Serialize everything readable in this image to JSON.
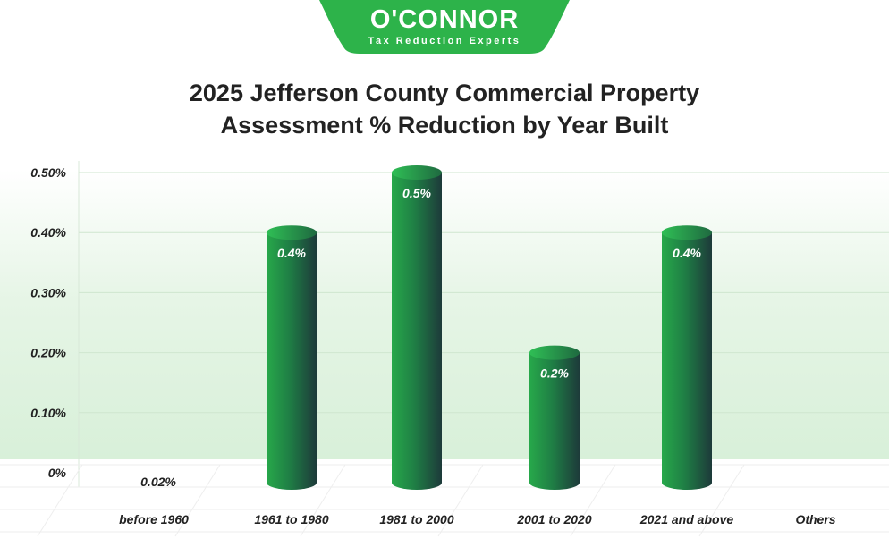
{
  "logo": {
    "name": "O'CONNOR",
    "tagline": "Tax Reduction Experts"
  },
  "colors": {
    "brand": "#2db34a",
    "bar_light": "#27a84a",
    "bar_dark": "#1d3a3a",
    "band": "#dff2df"
  },
  "chart_data": {
    "type": "bar",
    "title": "2025 Jefferson County Commercial Property Assessment % Reduction by Year Built",
    "title_lines": [
      "2025 Jefferson County Commercial Property",
      "Assessment % Reduction by Year Built"
    ],
    "categories": [
      "before 1960",
      "1961 to 1980",
      "1981 to 2000",
      "2001 to 2020",
      "2021 and above",
      "Others"
    ],
    "values": [
      0.02,
      0.4,
      0.5,
      0.2,
      0.4,
      null
    ],
    "data_labels": [
      "0.02%",
      "0.4%",
      "0.5%",
      "0.2%",
      "0.4%",
      ""
    ],
    "y_ticks": [
      0,
      0.1,
      0.2,
      0.3,
      0.4,
      0.5
    ],
    "y_tick_labels": [
      "0%",
      "0.10%",
      "0.20%",
      "0.30%",
      "0.40%",
      "0.50%"
    ],
    "ylim": [
      0,
      0.5
    ],
    "grid": true,
    "xlabel": "",
    "ylabel": ""
  }
}
